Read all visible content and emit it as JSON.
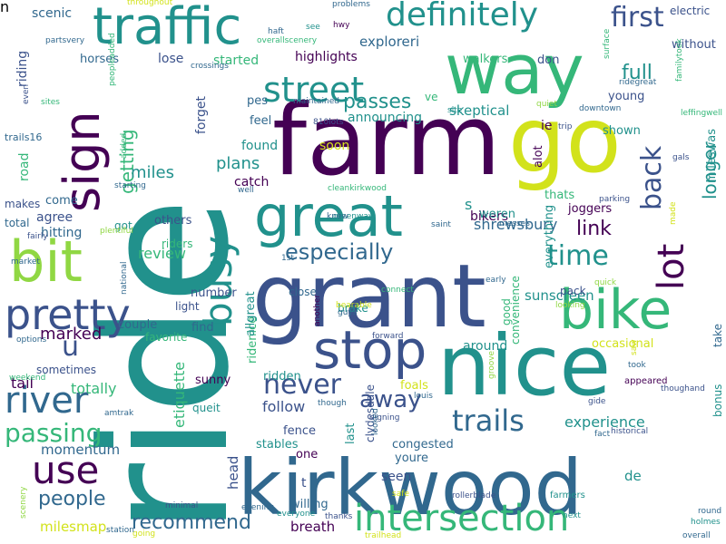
{
  "colors": {
    "purple": "#440154",
    "indigo": "#3b528b",
    "slate": "#31688e",
    "teal": "#21918c",
    "green": "#35b779",
    "lime": "#90d743",
    "yellow": "#d2e21b"
  },
  "words": [
    {
      "text": "ride",
      "c": "teal"
    },
    {
      "text": "farm",
      "c": "purple"
    },
    {
      "text": "grant",
      "c": "indigo"
    },
    {
      "text": "kirkwood",
      "c": "slate"
    },
    {
      "text": "nice",
      "c": "teal"
    },
    {
      "text": "way",
      "c": "green"
    },
    {
      "text": "go",
      "c": "yellow"
    },
    {
      "text": "great",
      "c": "teal"
    },
    {
      "text": "bike",
      "c": "green"
    },
    {
      "text": "stop",
      "c": "indigo"
    },
    {
      "text": "bit",
      "c": "lime"
    },
    {
      "text": "traffic",
      "c": "teal"
    },
    {
      "text": "pretty",
      "c": "indigo"
    },
    {
      "text": "intersection",
      "c": "green"
    },
    {
      "text": "lot",
      "c": "purple"
    },
    {
      "text": "sign",
      "c": "purple"
    },
    {
      "text": "busy",
      "c": "teal"
    },
    {
      "text": "street",
      "c": "teal"
    },
    {
      "text": "definitely",
      "c": "teal"
    },
    {
      "text": "river",
      "c": "slate"
    },
    {
      "text": "use",
      "c": "purple"
    },
    {
      "text": "u",
      "c": "indigo"
    },
    {
      "text": "trails",
      "c": "slate"
    },
    {
      "text": "never",
      "c": "indigo"
    },
    {
      "text": "away",
      "c": "indigo"
    },
    {
      "text": "back",
      "c": "indigo"
    },
    {
      "text": "especially",
      "c": "slate"
    },
    {
      "text": "time",
      "c": "teal"
    },
    {
      "text": "first",
      "c": "indigo"
    },
    {
      "text": "full",
      "c": "teal"
    },
    {
      "text": "passing",
      "c": "green"
    },
    {
      "text": "people",
      "c": "slate"
    },
    {
      "text": "recommend",
      "c": "slate"
    },
    {
      "text": "longer",
      "c": "teal"
    },
    {
      "text": "getting",
      "c": "green"
    },
    {
      "text": "passes",
      "c": "teal"
    },
    {
      "text": "link",
      "c": "purple"
    },
    {
      "text": "experience",
      "c": "teal"
    },
    {
      "text": "plans",
      "c": "teal"
    },
    {
      "text": "miles",
      "c": "teal"
    },
    {
      "text": "marked",
      "c": "purple"
    },
    {
      "text": "milesmap",
      "c": "yellow"
    },
    {
      "text": "momentum",
      "c": "slate"
    },
    {
      "text": "shrewsbury",
      "c": "slate"
    },
    {
      "text": "review",
      "c": "green"
    },
    {
      "text": "skeptical",
      "c": "teal"
    },
    {
      "text": "etiquette",
      "c": "green"
    },
    {
      "text": "follow",
      "c": "indigo"
    },
    {
      "text": "sunscreen",
      "c": "teal"
    },
    {
      "text": "tail",
      "c": "purple"
    },
    {
      "text": "totally",
      "c": "green"
    },
    {
      "text": "around",
      "c": "teal"
    },
    {
      "text": "announcing",
      "c": "teal"
    },
    {
      "text": "exploreri",
      "c": "slate"
    },
    {
      "text": "highlights",
      "c": "purple"
    },
    {
      "text": "started",
      "c": "green"
    },
    {
      "text": "road",
      "c": "green"
    },
    {
      "text": "scenic",
      "c": "slate"
    },
    {
      "text": "riding",
      "c": "indigo"
    },
    {
      "text": "horses",
      "c": "slate"
    },
    {
      "text": "lose",
      "c": "indigo"
    },
    {
      "text": "forget",
      "c": "indigo"
    },
    {
      "text": "pes",
      "c": "slate"
    },
    {
      "text": "feel",
      "c": "slate"
    },
    {
      "text": "found",
      "c": "teal"
    },
    {
      "text": "catch",
      "c": "purple"
    },
    {
      "text": "hitting",
      "c": "slate"
    },
    {
      "text": "agree",
      "c": "indigo"
    },
    {
      "text": "come",
      "c": "slate"
    },
    {
      "text": "others",
      "c": "indigo"
    },
    {
      "text": "riders",
      "c": "green"
    },
    {
      "text": "got",
      "c": "teal"
    },
    {
      "text": "total",
      "c": "slate"
    },
    {
      "text": "makes",
      "c": "indigo"
    },
    {
      "text": "trails16",
      "c": "slate"
    },
    {
      "text": "number",
      "c": "indigo"
    },
    {
      "text": "light",
      "c": "indigo"
    },
    {
      "text": "find",
      "c": "slate"
    },
    {
      "text": "favorite",
      "c": "green"
    },
    {
      "text": "couple",
      "c": "slate"
    },
    {
      "text": "sometimes",
      "c": "indigo"
    },
    {
      "text": "sunny",
      "c": "purple"
    },
    {
      "text": "queit",
      "c": "teal"
    },
    {
      "text": "head",
      "c": "indigo"
    },
    {
      "text": "stables",
      "c": "teal"
    },
    {
      "text": "fence",
      "c": "indigo"
    },
    {
      "text": "foals",
      "c": "yellow"
    },
    {
      "text": "last",
      "c": "teal"
    },
    {
      "text": "ridden",
      "c": "teal"
    },
    {
      "text": "ridenice",
      "c": "green"
    },
    {
      "text": "allgreat",
      "c": "teal"
    },
    {
      "text": "close",
      "c": "slate"
    },
    {
      "text": "brake",
      "c": "teal"
    },
    {
      "text": "clydesdale",
      "c": "indigo"
    },
    {
      "text": "one",
      "c": "purple"
    },
    {
      "text": "willing",
      "c": "slate"
    },
    {
      "text": "breath",
      "c": "purple"
    },
    {
      "text": "seen",
      "c": "indigo"
    },
    {
      "text": "youre",
      "c": "slate"
    },
    {
      "text": "congested",
      "c": "slate"
    },
    {
      "text": "de",
      "c": "teal"
    },
    {
      "text": "bikers",
      "c": "purple"
    },
    {
      "text": "joggers",
      "c": "purple"
    },
    {
      "text": "weren",
      "c": "teal"
    },
    {
      "text": "everything",
      "c": "teal"
    },
    {
      "text": "thats",
      "c": "green"
    },
    {
      "text": "alot",
      "c": "purple"
    },
    {
      "text": "ie",
      "c": "purple"
    },
    {
      "text": "shown",
      "c": "teal"
    },
    {
      "text": "young",
      "c": "indigo"
    },
    {
      "text": "mileswas",
      "c": "teal"
    },
    {
      "text": "bonus",
      "c": "teal"
    },
    {
      "text": "take",
      "c": "slate"
    },
    {
      "text": "occasional",
      "c": "yellow"
    },
    {
      "text": "without",
      "c": "indigo"
    },
    {
      "text": "don",
      "c": "indigo"
    },
    {
      "text": "walkers",
      "c": "green"
    },
    {
      "text": "ve",
      "c": "green"
    },
    {
      "text": "electric",
      "c": "indigo"
    },
    {
      "text": "pack",
      "c": "indigo"
    },
    {
      "text": "convenience",
      "c": "green"
    },
    {
      "text": "good",
      "c": "green"
    },
    {
      "text": "forward",
      "c": "indigo"
    },
    {
      "text": "gide",
      "c": "indigo"
    },
    {
      "text": "appeared",
      "c": "purple"
    },
    {
      "text": "louis",
      "c": "slate"
    },
    {
      "text": "signing",
      "c": "indigo"
    },
    {
      "text": "farmers",
      "c": "teal"
    },
    {
      "text": "rollerblade",
      "c": "indigo"
    },
    {
      "text": "round",
      "c": "slate"
    },
    {
      "text": "holmes",
      "c": "teal"
    },
    {
      "text": "overall",
      "c": "slate"
    },
    {
      "text": "next",
      "c": "teal"
    },
    {
      "text": "historical",
      "c": "indigo"
    },
    {
      "text": "thoughand",
      "c": "indigo"
    },
    {
      "text": "trailhead",
      "c": "yellow"
    },
    {
      "text": "safe",
      "c": "yellow"
    },
    {
      "text": "thanks",
      "c": "indigo"
    },
    {
      "text": "everyone",
      "c": "teal"
    },
    {
      "text": "evening",
      "c": "slate"
    },
    {
      "text": "going",
      "c": "yellow"
    },
    {
      "text": "station",
      "c": "slate"
    },
    {
      "text": "minimal",
      "c": "indigo"
    },
    {
      "text": "scenery",
      "c": "lime"
    },
    {
      "text": "amtrak",
      "c": "slate"
    },
    {
      "text": "weekend",
      "c": "green"
    },
    {
      "text": "options",
      "c": "slate"
    },
    {
      "text": "national",
      "c": "slate"
    },
    {
      "text": "market",
      "c": "slate"
    },
    {
      "text": "fairly",
      "c": "indigo"
    },
    {
      "text": "starting",
      "c": "slate"
    },
    {
      "text": "added",
      "c": "green"
    },
    {
      "text": "plentiful",
      "c": "lime"
    },
    {
      "text": "sites",
      "c": "green"
    },
    {
      "text": "even",
      "c": "indigo"
    },
    {
      "text": "peopleadded",
      "c": "green"
    },
    {
      "text": "partsvery",
      "c": "slate"
    },
    {
      "text": "throughout",
      "c": "yellow"
    },
    {
      "text": "overallscenery",
      "c": "green"
    },
    {
      "text": "haft",
      "c": "slate"
    },
    {
      "text": "see",
      "c": "teal"
    },
    {
      "text": "hwy",
      "c": "purple"
    },
    {
      "text": "problems",
      "c": "slate"
    },
    {
      "text": "crossings",
      "c": "slate"
    },
    {
      "text": "maintained",
      "c": "slate"
    },
    {
      "text": "810lots",
      "c": "indigo"
    },
    {
      "text": "site",
      "c": "teal"
    },
    {
      "text": "quiet",
      "c": "lime"
    },
    {
      "text": "trip",
      "c": "indigo"
    },
    {
      "text": "downtown",
      "c": "slate"
    },
    {
      "text": "ridegreat",
      "c": "slate"
    },
    {
      "text": "surface",
      "c": "green"
    },
    {
      "text": "familytook",
      "c": "green"
    },
    {
      "text": "leffingwell",
      "c": "green"
    },
    {
      "text": "gals",
      "c": "indigo"
    },
    {
      "text": "parking",
      "c": "indigo"
    },
    {
      "text": "greenway",
      "c": "teal"
    },
    {
      "text": "saint",
      "c": "slate"
    },
    {
      "text": "messes",
      "c": "slate"
    },
    {
      "text": "well",
      "c": "slate"
    },
    {
      "text": "cleankirkwood",
      "c": "green"
    },
    {
      "text": "knew",
      "c": "slate"
    },
    {
      "text": "1st",
      "c": "slate"
    },
    {
      "text": "early",
      "c": "slate"
    },
    {
      "text": "quick",
      "c": "lime"
    },
    {
      "text": "made",
      "c": "yellow"
    },
    {
      "text": "connect",
      "c": "green"
    },
    {
      "text": "bearable",
      "c": "yellow"
    },
    {
      "text": "guys",
      "c": "slate"
    },
    {
      "text": "another",
      "c": "purple"
    },
    {
      "text": "looking",
      "c": "lime"
    },
    {
      "text": "though",
      "c": "slate"
    },
    {
      "text": "looked",
      "c": "slate"
    },
    {
      "text": "fact",
      "c": "slate"
    },
    {
      "text": "groove",
      "c": "lime"
    },
    {
      "text": "took",
      "c": "slate"
    },
    {
      "text": "saw",
      "c": "yellow"
    },
    {
      "text": "soon",
      "c": "yellow"
    },
    {
      "text": "s",
      "c": "teal"
    },
    {
      "text": "t",
      "c": "indigo"
    },
    {
      "text": "n",
      "c": "slate"
    }
  ]
}
